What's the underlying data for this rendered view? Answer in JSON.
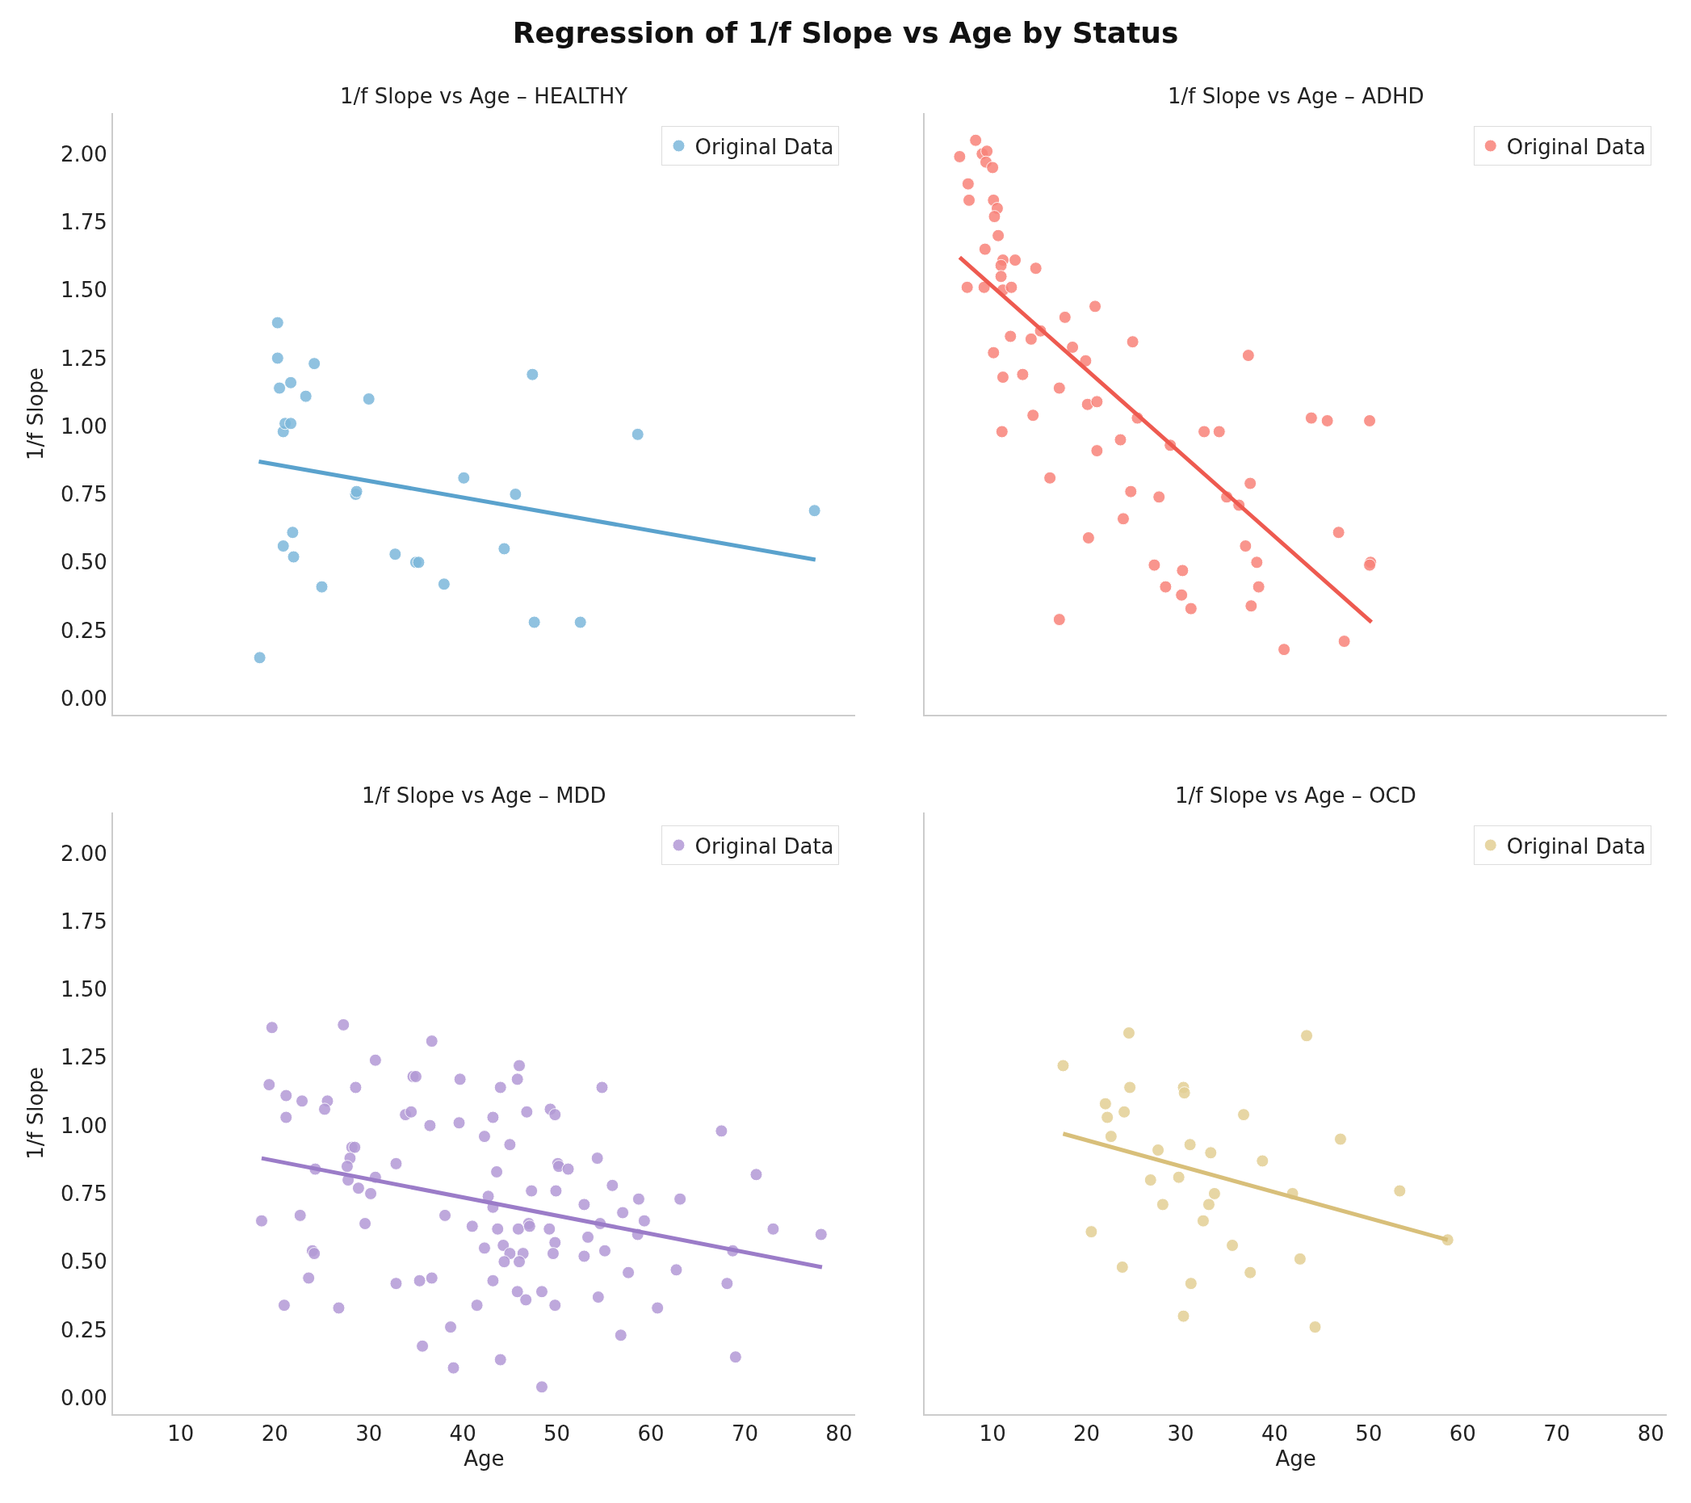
{
  "chart_data": [
    {
      "type": "scatter",
      "title": "1/f Slope vs Age – HEALTHY",
      "annotations": [
        "Regression of 1/f Slope vs Age by Status"
      ],
      "ylabel": "1/f Slope",
      "xlim": [
        2.8,
        81.7
      ],
      "ylim": [
        -0.06,
        2.15
      ],
      "yticks": [
        {
          "value": 0,
          "label": "0.00"
        },
        {
          "value": 0.25,
          "label": "0.25"
        },
        {
          "value": 0.5,
          "label": "0.50"
        },
        {
          "value": 0.75,
          "label": "0.75"
        },
        {
          "value": 1,
          "label": "1.00"
        },
        {
          "value": 1.25,
          "label": "1.25"
        },
        {
          "value": 1.5,
          "label": "1.50"
        },
        {
          "value": 1.75,
          "label": "1.75"
        },
        {
          "value": 2,
          "label": "2.00"
        }
      ],
      "tick_labels": "y",
      "legend": "top right",
      "grid": false,
      "marker": "circle",
      "series": [
        {
          "name": "Original Data",
          "color": "#7db8db",
          "x": [
            18.4,
            20.3,
            20.3,
            20.5,
            20.9,
            21.1,
            21.7,
            21.7,
            23.3,
            24.2,
            20.9,
            21.9,
            22.0,
            25.0,
            28.6,
            28.7,
            30.0,
            32.8,
            35.0,
            35.3,
            38.0,
            40.1,
            44.4,
            45.6,
            47.4,
            47.6,
            52.5,
            58.6,
            77.4
          ],
          "values": [
            0.15,
            1.38,
            1.25,
            1.14,
            0.98,
            1.01,
            1.01,
            1.16,
            1.11,
            1.23,
            0.56,
            0.61,
            0.52,
            0.41,
            0.75,
            0.76,
            1.1,
            0.53,
            0.5,
            0.5,
            0.42,
            0.81,
            0.55,
            0.75,
            1.19,
            0.28,
            0.28,
            0.97,
            0.69
          ]
        },
        {
          "type": "line",
          "marker": "none",
          "color": "#5aa2cd",
          "x": [
            18.3,
            77.5
          ],
          "values": [
            0.87,
            0.51
          ]
        }
      ]
    },
    {
      "type": "scatter",
      "title": "1/f Slope vs Age – ADHD",
      "xlim": [
        2.8,
        81.7
      ],
      "ylim": [
        -0.06,
        2.15
      ],
      "tick_labels": false,
      "legend": "top right",
      "grid": false,
      "marker": "circle",
      "series": [
        {
          "name": "Original Data",
          "color": "#f8837a",
          "x": [
            6.5,
            8.2,
            8.9,
            9.4,
            9.3,
            10.0,
            7.4,
            7.5,
            10.1,
            10.5,
            10.2,
            10.6,
            9.2,
            11.1,
            12.4,
            10.9,
            14.6,
            10.9,
            7.3,
            9.1,
            11.1,
            12.0,
            17.7,
            20.9,
            15.1,
            11.9,
            14.1,
            24.9,
            18.5,
            10.1,
            19.9,
            37.2,
            13.2,
            11.1,
            17.1,
            20.1,
            21.1,
            14.3,
            25.4,
            43.9,
            45.6,
            50.1,
            11.0,
            32.5,
            34.1,
            23.6,
            28.9,
            21.1,
            16.1,
            37.4,
            24.7,
            27.7,
            34.9,
            36.2,
            23.9,
            46.8,
            20.2,
            36.9,
            50.2,
            50.1,
            27.2,
            38.1,
            30.2,
            28.4,
            38.3,
            30.1,
            37.5,
            31.1,
            17.1,
            47.4,
            41.0
          ],
          "values": [
            1.99,
            2.05,
            2.0,
            2.01,
            1.97,
            1.95,
            1.89,
            1.83,
            1.83,
            1.8,
            1.77,
            1.7,
            1.65,
            1.61,
            1.61,
            1.59,
            1.58,
            1.55,
            1.51,
            1.51,
            1.5,
            1.51,
            1.4,
            1.44,
            1.35,
            1.33,
            1.32,
            1.31,
            1.29,
            1.27,
            1.24,
            1.26,
            1.19,
            1.18,
            1.14,
            1.08,
            1.09,
            1.04,
            1.03,
            1.03,
            1.02,
            1.02,
            0.98,
            0.98,
            0.98,
            0.95,
            0.93,
            0.91,
            0.81,
            0.79,
            0.76,
            0.74,
            0.74,
            0.71,
            0.66,
            0.61,
            0.59,
            0.56,
            0.5,
            0.49,
            0.49,
            0.5,
            0.47,
            0.41,
            0.41,
            0.38,
            0.34,
            0.33,
            0.29,
            0.21,
            0.18
          ]
        },
        {
          "type": "line",
          "marker": "none",
          "color": "#ee5a50",
          "x": [
            6.5,
            50.3
          ],
          "values": [
            1.62,
            0.28
          ]
        }
      ]
    },
    {
      "type": "scatter",
      "title": "1/f Slope vs Age – MDD",
      "xlabel": "Age",
      "ylabel": "1/f Slope",
      "xlim": [
        2.8,
        81.7
      ],
      "ylim": [
        -0.06,
        2.15
      ],
      "xticks": [
        10,
        20,
        30,
        40,
        50,
        60,
        70,
        80
      ],
      "yticks": [
        {
          "value": 0,
          "label": "0.00"
        },
        {
          "value": 0.25,
          "label": "0.25"
        },
        {
          "value": 0.5,
          "label": "0.50"
        },
        {
          "value": 0.75,
          "label": "0.75"
        },
        {
          "value": 1,
          "label": "1.00"
        },
        {
          "value": 1.25,
          "label": "1.25"
        },
        {
          "value": 1.5,
          "label": "1.50"
        },
        {
          "value": 1.75,
          "label": "1.75"
        },
        {
          "value": 2,
          "label": "2.00"
        }
      ],
      "legend": "top right",
      "grid": false,
      "marker": "circle",
      "series": [
        {
          "name": "Original Data",
          "color": "#b39ad6",
          "x": [
            19.7,
            27.3,
            36.7,
            30.7,
            46.0,
            19.4,
            21.2,
            22.9,
            25.6,
            28.6,
            34.7,
            35.0,
            39.7,
            44.0,
            45.8,
            54.8,
            21.2,
            25.3,
            33.9,
            34.5,
            36.5,
            39.6,
            43.2,
            46.8,
            49.3,
            49.8,
            67.5,
            28.2,
            28.5,
            42.3,
            45.0,
            28.0,
            54.3,
            27.7,
            24.3,
            32.9,
            50.1,
            50.2,
            51.2,
            43.6,
            71.2,
            27.8,
            30.7,
            28.9,
            30.2,
            47.3,
            49.9,
            55.9,
            42.7,
            58.7,
            63.1,
            52.9,
            43.2,
            18.6,
            22.7,
            38.1,
            57.0,
            29.6,
            41.0,
            43.7,
            45.9,
            47.0,
            47.1,
            49.2,
            54.6,
            59.3,
            73.0,
            78.1,
            58.6,
            53.3,
            44.3,
            49.8,
            24.0,
            24.2,
            42.3,
            45.0,
            46.4,
            49.6,
            55.1,
            68.7,
            52.9,
            44.4,
            46.0,
            57.6,
            62.7,
            23.6,
            36.7,
            35.4,
            32.9,
            43.2,
            68.1,
            45.8,
            48.4,
            46.7,
            54.4,
            21.0,
            26.8,
            41.5,
            49.8,
            60.7,
            38.7,
            56.8,
            35.7,
            44.0,
            69.0,
            39.0,
            48.4
          ],
          "values": [
            1.36,
            1.37,
            1.31,
            1.24,
            1.22,
            1.15,
            1.11,
            1.09,
            1.09,
            1.14,
            1.18,
            1.18,
            1.17,
            1.14,
            1.17,
            1.14,
            1.03,
            1.06,
            1.04,
            1.05,
            1.0,
            1.01,
            1.03,
            1.05,
            1.06,
            1.04,
            0.98,
            0.92,
            0.92,
            0.96,
            0.93,
            0.88,
            0.88,
            0.85,
            0.84,
            0.86,
            0.86,
            0.85,
            0.84,
            0.83,
            0.82,
            0.8,
            0.81,
            0.77,
            0.75,
            0.76,
            0.76,
            0.78,
            0.74,
            0.73,
            0.73,
            0.71,
            0.7,
            0.65,
            0.67,
            0.67,
            0.68,
            0.64,
            0.63,
            0.62,
            0.62,
            0.64,
            0.63,
            0.62,
            0.64,
            0.65,
            0.62,
            0.6,
            0.6,
            0.59,
            0.56,
            0.57,
            0.54,
            0.53,
            0.55,
            0.53,
            0.53,
            0.53,
            0.54,
            0.54,
            0.52,
            0.5,
            0.5,
            0.46,
            0.47,
            0.44,
            0.44,
            0.43,
            0.42,
            0.43,
            0.42,
            0.39,
            0.39,
            0.36,
            0.37,
            0.34,
            0.33,
            0.34,
            0.34,
            0.33,
            0.26,
            0.23,
            0.19,
            0.14,
            0.15,
            0.11,
            0.04
          ]
        },
        {
          "type": "line",
          "marker": "none",
          "color": "#9b7cc8",
          "x": [
            18.6,
            78.2
          ],
          "values": [
            0.88,
            0.48
          ]
        }
      ]
    },
    {
      "type": "scatter",
      "title": "1/f Slope vs Age – OCD",
      "xlabel": "Age",
      "xlim": [
        2.8,
        81.7
      ],
      "ylim": [
        -0.06,
        2.15
      ],
      "xticks": [
        10,
        20,
        30,
        40,
        50,
        60,
        70,
        80
      ],
      "tick_labels": "x",
      "legend": "top right",
      "grid": false,
      "marker": "circle",
      "series": [
        {
          "name": "Original Data",
          "color": "#e3cf95",
          "x": [
            24.5,
            43.4,
            17.5,
            24.6,
            30.3,
            30.4,
            22.0,
            22.2,
            24.0,
            36.7,
            22.6,
            47.0,
            27.6,
            31.0,
            33.2,
            38.7,
            26.8,
            29.8,
            33.6,
            41.9,
            53.3,
            28.1,
            33.0,
            32.4,
            20.5,
            35.5,
            58.4,
            42.7,
            23.8,
            37.4,
            31.1,
            30.3,
            44.3
          ],
          "values": [
            1.34,
            1.33,
            1.22,
            1.14,
            1.14,
            1.12,
            1.08,
            1.03,
            1.05,
            1.04,
            0.96,
            0.95,
            0.91,
            0.93,
            0.9,
            0.87,
            0.8,
            0.81,
            0.75,
            0.75,
            0.76,
            0.71,
            0.71,
            0.65,
            0.61,
            0.56,
            0.58,
            0.51,
            0.48,
            0.46,
            0.42,
            0.3,
            0.26
          ]
        },
        {
          "type": "line",
          "marker": "none",
          "color": "#d8bf7a",
          "x": [
            17.5,
            58.4
          ],
          "values": [
            0.97,
            0.58
          ]
        }
      ]
    }
  ]
}
